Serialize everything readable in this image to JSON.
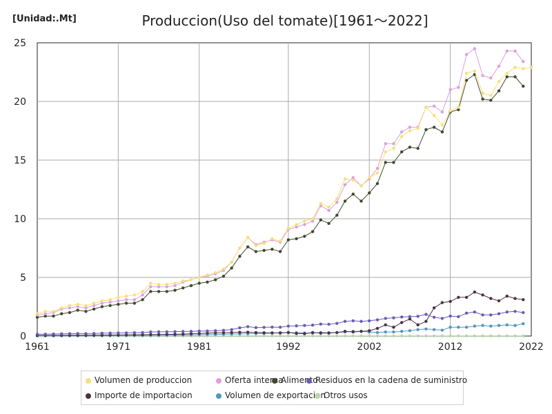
{
  "unit_label": "[Unidad:.Mt]",
  "chart_data": {
    "type": "line",
    "title": "Produccion(Uso del tomate)[1961〜2022]",
    "xlabel": "",
    "ylabel": "",
    "xlim": [
      1961,
      2022
    ],
    "ylim": [
      0,
      25
    ],
    "x_ticks": [
      1961,
      1971,
      1981,
      1992,
      2002,
      2012,
      2022
    ],
    "y_ticks": [
      0,
      5,
      10,
      15,
      20,
      25
    ],
    "grid": true,
    "legend_position": "bottom",
    "x": [
      1961,
      1962,
      1963,
      1964,
      1965,
      1966,
      1967,
      1968,
      1969,
      1970,
      1971,
      1972,
      1973,
      1974,
      1975,
      1976,
      1977,
      1978,
      1979,
      1980,
      1981,
      1982,
      1983,
      1984,
      1985,
      1986,
      1987,
      1988,
      1989,
      1990,
      1991,
      1992,
      1993,
      1994,
      1995,
      1996,
      1997,
      1998,
      1999,
      2000,
      2001,
      2002,
      2003,
      2004,
      2005,
      2006,
      2007,
      2008,
      2009,
      2010,
      2011,
      2012,
      2013,
      2014,
      2015,
      2016,
      2017,
      2018,
      2019,
      2020,
      2021,
      2022
    ],
    "series": [
      {
        "name": "Volumen de produccion",
        "color": "#f5e07a",
        "values": [
          1.9,
          2.1,
          2.1,
          2.4,
          2.6,
          2.7,
          2.6,
          2.8,
          3.0,
          3.1,
          3.3,
          3.4,
          3.5,
          3.8,
          4.5,
          4.4,
          4.4,
          4.5,
          4.7,
          4.8,
          5.0,
          5.2,
          5.4,
          5.7,
          6.3,
          7.5,
          8.4,
          7.7,
          7.9,
          8.3,
          8.1,
          9.2,
          9.5,
          9.8,
          10.0,
          11.3,
          11.0,
          11.7,
          13.4,
          13.3,
          12.8,
          13.5,
          13.9,
          15.7,
          16.0,
          17.0,
          17.5,
          17.7,
          19.5,
          18.8,
          18.0,
          19.2,
          19.5,
          22.4,
          22.6,
          20.7,
          20.5,
          21.7,
          22.4,
          22.9,
          22.8,
          22.9
        ]
      },
      {
        "name": "Oferta interna",
        "color": "#de9fdc",
        "values": [
          1.8,
          1.9,
          2.0,
          2.3,
          2.4,
          2.5,
          2.4,
          2.6,
          2.8,
          2.9,
          3.0,
          3.1,
          3.1,
          3.5,
          4.2,
          4.2,
          4.2,
          4.3,
          4.6,
          4.8,
          5.0,
          5.1,
          5.3,
          5.6,
          6.3,
          7.5,
          8.4,
          7.8,
          8.0,
          8.2,
          8.0,
          9.1,
          9.3,
          9.5,
          9.8,
          11.1,
          10.7,
          11.4,
          12.9,
          13.5,
          12.8,
          13.4,
          14.3,
          16.4,
          16.4,
          17.4,
          17.8,
          17.8,
          19.5,
          19.6,
          19.1,
          21.0,
          21.2,
          24.0,
          24.5,
          22.2,
          22.0,
          23.0,
          24.3,
          24.3,
          23.4,
          null
        ]
      },
      {
        "name": "Alimento",
        "color": "#3f4a2e",
        "values": [
          1.6,
          1.7,
          1.7,
          1.9,
          2.0,
          2.2,
          2.1,
          2.3,
          2.5,
          2.6,
          2.7,
          2.8,
          2.8,
          3.1,
          3.8,
          3.8,
          3.8,
          3.9,
          4.1,
          4.3,
          4.5,
          4.6,
          4.8,
          5.1,
          5.8,
          6.8,
          7.6,
          7.2,
          7.3,
          7.4,
          7.2,
          8.2,
          8.3,
          8.5,
          8.9,
          9.9,
          9.6,
          10.3,
          11.5,
          12.1,
          11.5,
          12.2,
          13.0,
          14.8,
          14.8,
          15.7,
          16.1,
          16.0,
          17.6,
          17.8,
          17.4,
          19.1,
          19.3,
          21.8,
          22.3,
          20.2,
          20.1,
          20.9,
          22.1,
          22.1,
          21.3,
          null
        ]
      },
      {
        "name": "Residuos en la cadena de suministro",
        "color": "#6a5bb8",
        "values": [
          0.15,
          0.16,
          0.17,
          0.19,
          0.2,
          0.21,
          0.21,
          0.22,
          0.24,
          0.25,
          0.26,
          0.27,
          0.28,
          0.3,
          0.35,
          0.36,
          0.36,
          0.37,
          0.39,
          0.4,
          0.42,
          0.43,
          0.45,
          0.48,
          0.55,
          0.7,
          0.8,
          0.72,
          0.74,
          0.76,
          0.75,
          0.85,
          0.87,
          0.9,
          0.93,
          1.02,
          1.0,
          1.08,
          1.25,
          1.3,
          1.25,
          1.3,
          1.38,
          1.5,
          1.55,
          1.62,
          1.65,
          1.68,
          1.85,
          1.6,
          1.5,
          1.7,
          1.65,
          1.95,
          2.05,
          1.8,
          1.8,
          1.9,
          2.05,
          2.1,
          2.0,
          null
        ]
      },
      {
        "name": "Importe de importacion",
        "color": "#4d2f45",
        "values": [
          0.05,
          0.05,
          0.06,
          0.06,
          0.07,
          0.07,
          0.07,
          0.08,
          0.08,
          0.09,
          0.09,
          0.1,
          0.1,
          0.11,
          0.12,
          0.13,
          0.14,
          0.15,
          0.17,
          0.2,
          0.22,
          0.25,
          0.27,
          0.28,
          0.3,
          0.32,
          0.33,
          0.3,
          0.28,
          0.27,
          0.26,
          0.3,
          0.22,
          0.2,
          0.3,
          0.25,
          0.25,
          0.3,
          0.4,
          0.35,
          0.4,
          0.45,
          0.65,
          0.95,
          0.75,
          1.15,
          1.45,
          0.95,
          1.25,
          2.4,
          2.85,
          2.95,
          3.3,
          3.3,
          3.75,
          3.5,
          3.2,
          3.0,
          3.4,
          3.2,
          3.1,
          null
        ]
      },
      {
        "name": "Volumen de exportacion",
        "color": "#4f97c3",
        "values": [
          0.02,
          0.02,
          0.02,
          0.03,
          0.03,
          0.03,
          0.03,
          0.04,
          0.04,
          0.04,
          0.05,
          0.05,
          0.06,
          0.06,
          0.07,
          0.07,
          0.08,
          0.08,
          0.09,
          0.1,
          0.12,
          0.13,
          0.14,
          0.15,
          0.17,
          0.18,
          0.2,
          0.22,
          0.22,
          0.25,
          0.28,
          0.3,
          0.28,
          0.25,
          0.25,
          0.3,
          0.28,
          0.3,
          0.35,
          0.4,
          0.4,
          0.35,
          0.3,
          0.35,
          0.35,
          0.4,
          0.45,
          0.55,
          0.6,
          0.55,
          0.5,
          0.75,
          0.75,
          0.75,
          0.85,
          0.9,
          0.85,
          0.9,
          0.95,
          0.9,
          1.05,
          null
        ]
      },
      {
        "name": "Otros usos",
        "color": "#b8d8a8",
        "values": [
          0.01,
          0.01,
          0.01,
          0.01,
          0.01,
          0.01,
          0.01,
          0.01,
          0.01,
          0.01,
          0.01,
          0.01,
          0.01,
          0.01,
          0.01,
          0.01,
          0.01,
          0.01,
          0.01,
          0.01,
          0.01,
          0.01,
          0.01,
          0.01,
          0.01,
          0.01,
          0.01,
          0.01,
          0.01,
          0.01,
          0.01,
          0.01,
          0.01,
          0.01,
          0.01,
          0.01,
          0.01,
          0.01,
          0.01,
          0.01,
          0.01,
          0.01,
          0.01,
          0.01,
          0.01,
          0.01,
          0.01,
          0.01,
          0.01,
          0.01,
          0.01,
          0.01,
          0.01,
          0.01,
          0.01,
          0.01,
          0.01,
          0.01,
          0.01,
          0.01,
          0.01,
          null
        ]
      }
    ]
  }
}
